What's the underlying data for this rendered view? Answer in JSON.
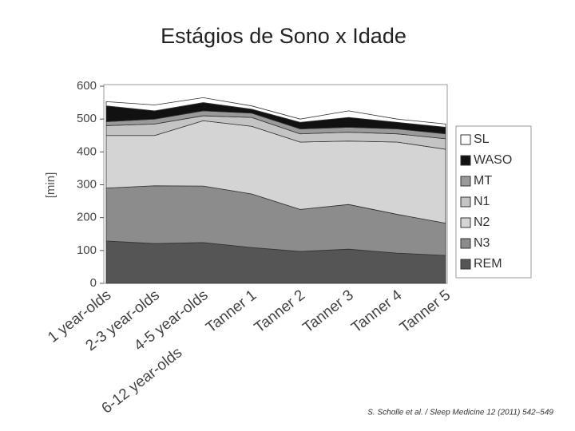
{
  "chart_data": {
    "type": "stacked_area",
    "title": "Estágios de Sono x Idade",
    "y_label": "[min]",
    "categories": [
      "1 year-olds",
      "2-3 year-olds",
      "4-5 year-olds",
      "Tanner 1",
      "Tanner 2",
      "Tanner 3",
      "Tanner 4",
      "Tanner 5"
    ],
    "group_label": "6-12 year-olds",
    "series": [
      {
        "name": "REM",
        "color": "#555555",
        "values": [
          129,
          121,
          124,
          109,
          97,
          104,
          92,
          85
        ]
      },
      {
        "name": "N3",
        "color": "#8c8c8c",
        "values": [
          161,
          176,
          172,
          163,
          128,
          136,
          118,
          98
        ]
      },
      {
        "name": "N2",
        "color": "#d4d4d4",
        "values": [
          160,
          153,
          199,
          206,
          205,
          193,
          220,
          225
        ]
      },
      {
        "name": "N1",
        "color": "#c4c4c4",
        "values": [
          30,
          35,
          15,
          27,
          25,
          27,
          25,
          32
        ]
      },
      {
        "name": "MT",
        "color": "#9a9a9a",
        "values": [
          12,
          15,
          15,
          13,
          15,
          15,
          15,
          15
        ]
      },
      {
        "name": "WASO",
        "color": "#111111",
        "values": [
          48,
          25,
          25,
          12,
          20,
          30,
          20,
          20
        ]
      },
      {
        "name": "SL",
        "color": "#ffffff",
        "values": [
          13,
          18,
          15,
          10,
          10,
          20,
          10,
          10
        ]
      }
    ],
    "ylim": [
      0,
      600
    ],
    "yticks": [
      0,
      100,
      200,
      300,
      400,
      500,
      600
    ],
    "source": "S. Scholle et al. / Sleep Medicine 12 (2011) 542–549"
  }
}
